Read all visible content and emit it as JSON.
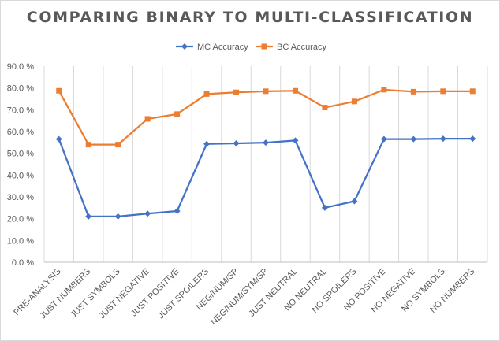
{
  "chart_data": {
    "type": "line",
    "title": "COMPARING BINARY TO MULTI-CLASSIFICATION",
    "xlabel": "",
    "ylabel": "",
    "categories": [
      "PRE-ANALYSIS",
      "JUST NUMBERS",
      "JUST SYMBOLS",
      "JUST NEGATIVE",
      "JUST POSITIVE",
      "JUST SPOILERS",
      "NEG/NUM/SP",
      "NEG/NUM/SYM/SP",
      "JUST NEUTRAL",
      "NO NEUTRAL",
      "NO SPOILERS",
      "NO POSITIVE",
      "NO NEGATIVE",
      "NO SYMBOLS",
      "NO NUMBERS"
    ],
    "series": [
      {
        "name": "MC Accuracy",
        "color": "#4472c4",
        "marker": "diamond",
        "values": [
          56.5,
          21.0,
          21.0,
          22.3,
          23.5,
          54.3,
          54.6,
          54.9,
          55.9,
          25.0,
          28.0,
          56.5,
          56.5,
          56.7,
          56.7
        ]
      },
      {
        "name": "BC Accuracy",
        "color": "#ed7d31",
        "marker": "square",
        "values": [
          78.7,
          54.0,
          54.0,
          65.8,
          68.0,
          77.2,
          78.0,
          78.5,
          78.7,
          71.0,
          73.8,
          79.2,
          78.3,
          78.5,
          78.5
        ]
      }
    ],
    "ylim": [
      0,
      90
    ],
    "yticks": [
      0,
      10,
      20,
      30,
      40,
      50,
      60,
      70,
      80,
      90
    ],
    "ytick_labels": [
      "0.0 %",
      "10.0 %",
      "20.0 %",
      "30.0 %",
      "40.0 %",
      "50.0 %",
      "60.0 %",
      "70.0 %",
      "80.0 %",
      "90.0 %"
    ],
    "grid": "vertical",
    "legend": "top"
  }
}
